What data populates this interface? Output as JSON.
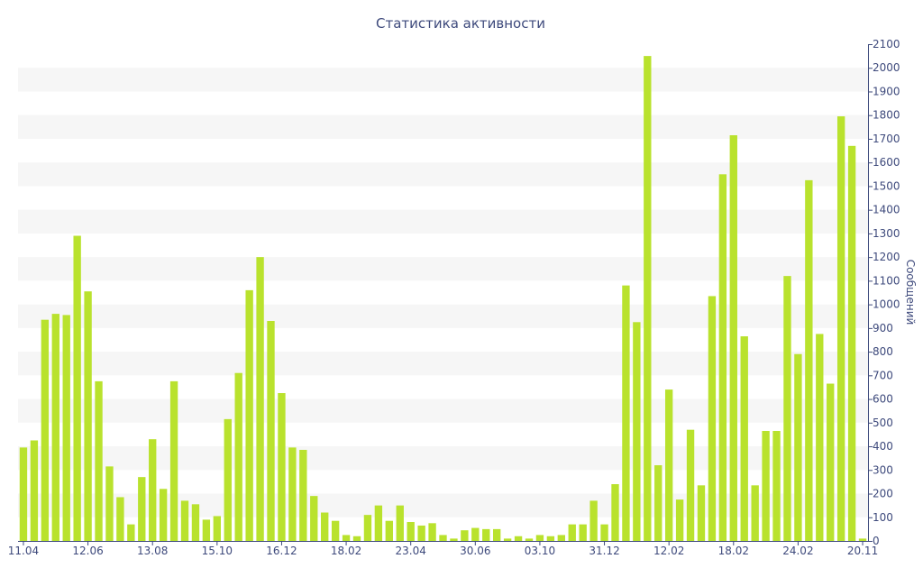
{
  "chart_data": {
    "type": "bar",
    "title": "Статистика активности",
    "ylabel": "Сообщений",
    "xlabel": "",
    "ylim": [
      0,
      2100
    ],
    "yticks": [
      0,
      100,
      200,
      300,
      400,
      500,
      600,
      700,
      800,
      900,
      1000,
      1100,
      1200,
      1300,
      1400,
      1500,
      1600,
      1700,
      1800,
      1900,
      2000,
      2100
    ],
    "x_tick_labels": [
      "11.04",
      "12.06",
      "13.08",
      "15.10",
      "16.12",
      "18.02",
      "23.04",
      "30.06",
      "03.10",
      "31.12",
      "12.02",
      "18.02",
      "24.02",
      "20.11"
    ],
    "grid": "horizontal alternating bands",
    "colors": {
      "bar": "#b9e22d",
      "band": "#f6f6f6",
      "axis": "#3e4a7c",
      "text": "#3e4a7c"
    },
    "series": [
      {
        "values": [
          395,
          425,
          935,
          960,
          955,
          1290,
          1055,
          675,
          315,
          185,
          70,
          270,
          430,
          220,
          675,
          170,
          155,
          90,
          105,
          515,
          710,
          1060,
          1200,
          930,
          625,
          395,
          385,
          190,
          120,
          85,
          25,
          20,
          110,
          150,
          85,
          150,
          80,
          65,
          75,
          25,
          10,
          45,
          55,
          50,
          50,
          10,
          20,
          10,
          25,
          20,
          25,
          70,
          70,
          170,
          70,
          240,
          1080,
          925,
          2050,
          320,
          640,
          175,
          470,
          235,
          1035,
          1550,
          1715,
          865,
          235,
          465,
          465,
          1120,
          790,
          1525,
          875,
          665,
          1795,
          1670,
          10
        ]
      }
    ]
  }
}
